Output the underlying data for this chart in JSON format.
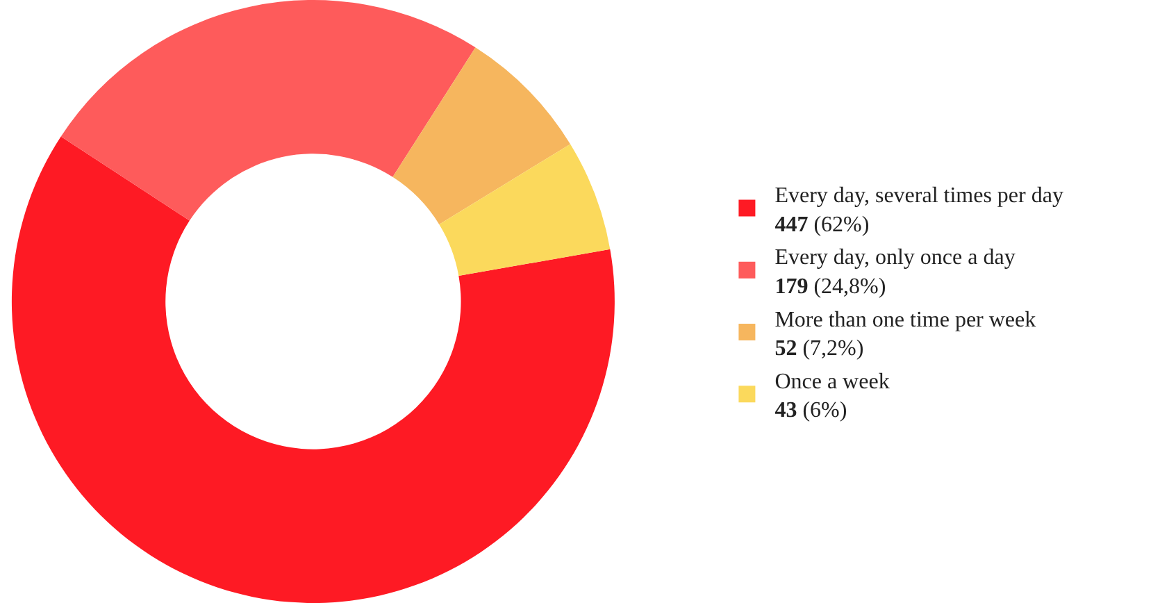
{
  "chart_data": {
    "type": "donut",
    "categories": [
      "Every day, several times per day",
      "Every day, only once a day",
      "More than one time per week",
      "Once a week"
    ],
    "values": [
      447,
      179,
      52,
      43
    ],
    "value_labels": [
      "447 (62%)",
      "179 (24,8%)",
      "52 (7,2%)",
      "43 (6%)"
    ],
    "colors": [
      "#fe1a24",
      "#fe5b5b",
      "#f6b65e",
      "#fbd95c"
    ],
    "legend": "right"
  }
}
